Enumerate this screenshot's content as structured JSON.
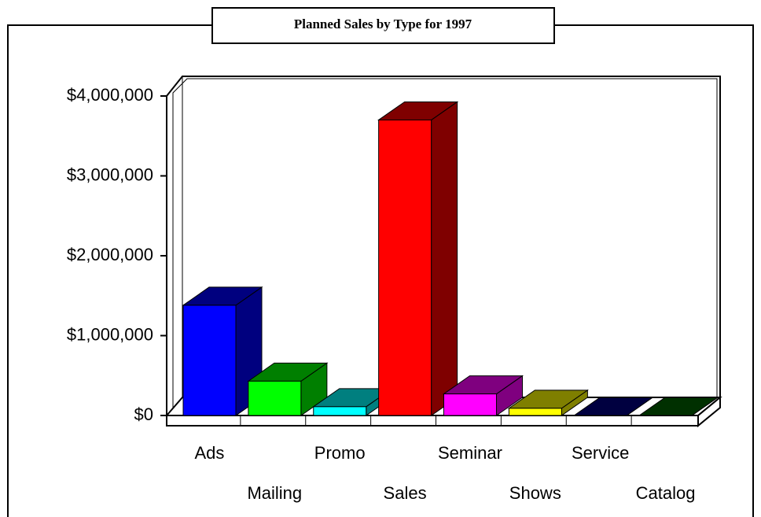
{
  "chart_data": {
    "type": "bar3d",
    "title": "Planned Sales by Type for 1997",
    "categories": [
      "Ads",
      "Mailing",
      "Promo",
      "Sales",
      "Seminar",
      "Shows",
      "Service",
      "Catalog"
    ],
    "values": [
      1380000,
      430000,
      110000,
      3700000,
      270000,
      90000,
      0,
      0
    ],
    "colors": [
      "#0000ff",
      "#00ff00",
      "#00ffff",
      "#ff0000",
      "#ff00ff",
      "#ffff00",
      "#000080",
      "#006000"
    ],
    "ylim": [
      0,
      4000000
    ],
    "yticks": [
      {
        "value": 0,
        "label": "$0"
      },
      {
        "value": 1000000,
        "label": "$1,000,000"
      },
      {
        "value": 2000000,
        "label": "$2,000,000"
      },
      {
        "value": 3000000,
        "label": "$3,000,000"
      },
      {
        "value": 4000000,
        "label": "$4,000,000"
      }
    ]
  }
}
